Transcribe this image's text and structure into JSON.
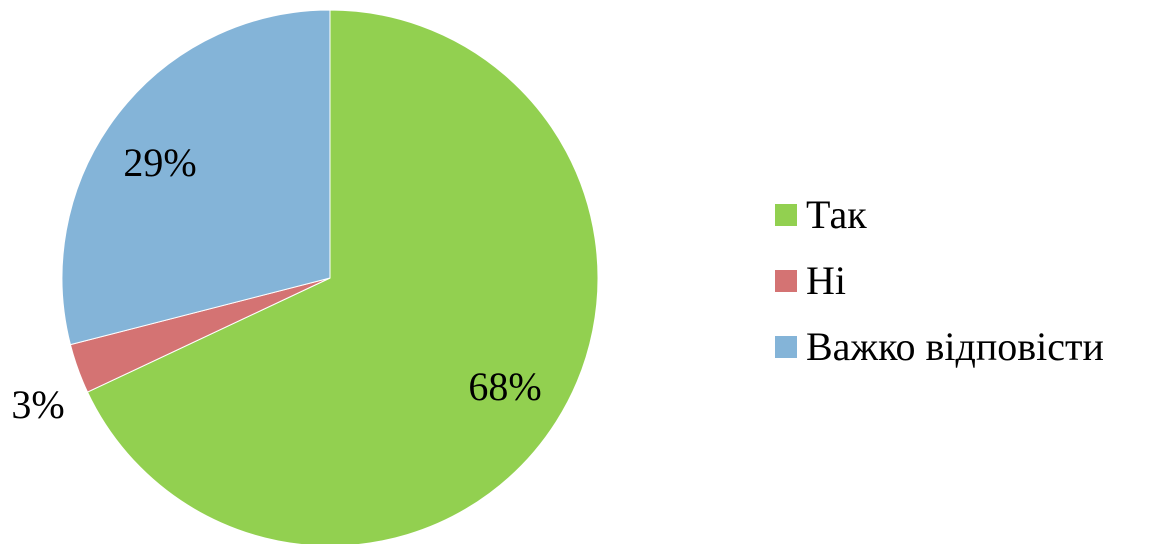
{
  "chart_data": {
    "type": "pie",
    "categories": [
      "Так",
      "Ні",
      "Важко відповісти"
    ],
    "values": [
      68,
      3,
      29
    ],
    "data_labels": [
      "68%",
      "3%",
      "29%"
    ],
    "colors": [
      "#92d050",
      "#d47373",
      "#84b4d8"
    ],
    "start_angle_deg": 0,
    "direction": "clockwise",
    "legend_position": "right"
  }
}
